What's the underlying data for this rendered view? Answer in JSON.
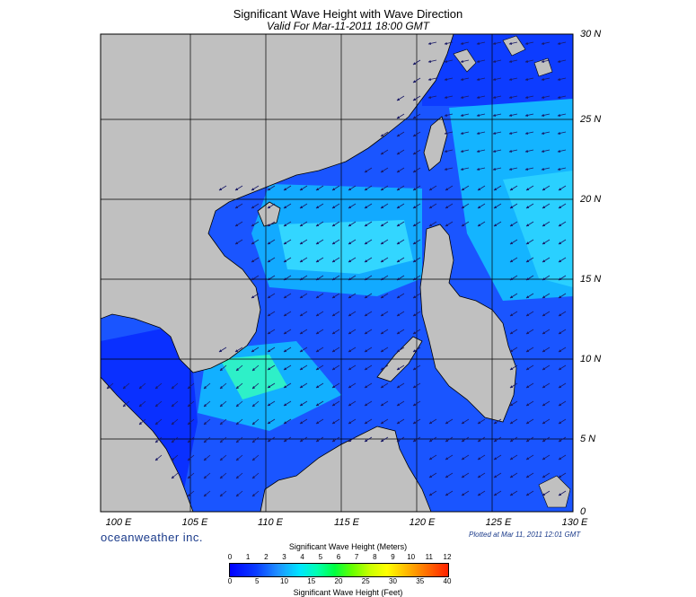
{
  "header": {
    "title": "Significant Wave Height with Wave Direction",
    "subtitle": "Valid For Mar-11-2011 18:00 GMT"
  },
  "axes": {
    "lat_labels": [
      "30 N",
      "25 N",
      "20 N",
      "15 N",
      "10 N",
      "5 N",
      "0"
    ],
    "lon_labels": [
      "100 E",
      "105 E",
      "110 E",
      "115 E",
      "120 E",
      "125 E",
      "130 E"
    ]
  },
  "footer": {
    "brand": "oceanweather inc.",
    "plotted": "Plotted at Mar 11, 2011 12:01 GMT"
  },
  "colorbar": {
    "title_top": "Significant Wave Height (Meters)",
    "title_bottom": "Significant Wave Height (Feet)",
    "meters_ticks": [
      "0",
      "1",
      "2",
      "3",
      "4",
      "5",
      "6",
      "7",
      "8",
      "9",
      "10",
      "11",
      "12"
    ],
    "feet_ticks": [
      "0",
      "5",
      "10",
      "15",
      "20",
      "25",
      "30",
      "35",
      "40"
    ]
  },
  "colors": {
    "land": "#c0c0c0",
    "deep_blue": "#0033ff",
    "mid_blue": "#1a66ff",
    "cyan": "#00c8ff",
    "aqua": "#33e0ff",
    "arrow": "#1a1a66"
  }
}
